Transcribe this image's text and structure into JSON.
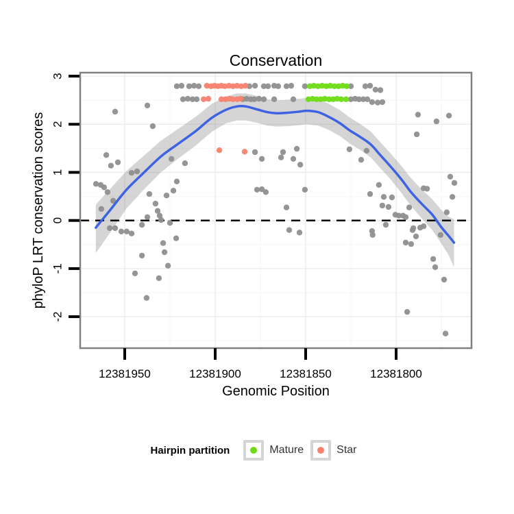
{
  "title": "Conservation",
  "axes": {
    "x_label": "Genomic Position",
    "y_label": "phyloP LRT conservation scores"
  },
  "legend": {
    "title": "Hairpin partition",
    "items": [
      {
        "label": "Mature",
        "color": "#6EDC14"
      },
      {
        "label": "Star",
        "color": "#F8826E"
      }
    ]
  },
  "colors": {
    "gray_point": "#8F8F8F",
    "mature": "#6EDC14",
    "star": "#F8826E",
    "smooth_line": "#3D63E3",
    "ribbon": "#7F7F7F",
    "panel_border": "#808080",
    "grid_major": "#ECECEC",
    "grid_minor": "#F7F7F7",
    "tick": "#000000",
    "zero_line": "#000000",
    "legend_key_border": "#D5D5D5"
  },
  "chart_data": {
    "type": "scatter",
    "title": "Conservation",
    "xlabel": "Genomic Position",
    "ylabel": "phyloP LRT conservation scores",
    "x_reversed": true,
    "xlim": [
      12381975,
      12381758
    ],
    "ylim": [
      -2.65,
      3.07
    ],
    "x_ticks": [
      12381950,
      12381900,
      12381850,
      12381800
    ],
    "y_ticks": [
      3,
      2,
      1,
      0,
      -1,
      -2
    ],
    "x_minor": [
      12381925,
      12381875,
      12381825,
      12381775
    ],
    "y_minor": [
      2.5,
      1.5,
      0.5,
      -0.5,
      -1.5,
      -2.5
    ],
    "hline": 0,
    "series": [
      {
        "name": "none",
        "color": "#8F8F8F",
        "points": [
          [
            12381921.2,
            2.79
          ],
          [
            12381918.6,
            2.8
          ],
          [
            12381914.4,
            2.79
          ],
          [
            12381911.7,
            2.8
          ],
          [
            12381909.1,
            2.79
          ],
          [
            12381881.1,
            2.79
          ],
          [
            12381878.0,
            2.8
          ],
          [
            12381873.1,
            2.79
          ],
          [
            12381870.8,
            2.79
          ],
          [
            12381867.4,
            2.8
          ],
          [
            12381865.2,
            2.79
          ],
          [
            12381860.6,
            2.79
          ],
          [
            12381858.0,
            2.8
          ],
          [
            12381850.4,
            2.79
          ],
          [
            12381825.0,
            2.79
          ],
          [
            12381817.0,
            2.79
          ],
          [
            12381814.4,
            2.8
          ],
          [
            12381811.4,
            2.72
          ],
          [
            12381808.7,
            2.71
          ],
          [
            12381917.8,
            2.52
          ],
          [
            12381915.2,
            2.53
          ],
          [
            12381912.5,
            2.52
          ],
          [
            12381910.2,
            2.52
          ],
          [
            12381884.8,
            2.52
          ],
          [
            12381882.6,
            2.53
          ],
          [
            12381880.3,
            2.52
          ],
          [
            12381878.4,
            2.52
          ],
          [
            12381875.8,
            2.53
          ],
          [
            12381873.1,
            2.52
          ],
          [
            12381867.4,
            2.52
          ],
          [
            12381856.8,
            2.52
          ],
          [
            12381825.0,
            2.52
          ],
          [
            12381822.7,
            2.53
          ],
          [
            12381820.5,
            2.52
          ],
          [
            12381818.2,
            2.52
          ],
          [
            12381815.9,
            2.52
          ],
          [
            12381813.3,
            2.46
          ],
          [
            12381810.2,
            2.45
          ],
          [
            12381807.6,
            2.46
          ],
          [
            12381955.3,
            2.26
          ],
          [
            12381937.5,
            2.39
          ],
          [
            12381934.5,
            1.96
          ],
          [
            12381960.2,
            1.36
          ],
          [
            12381957.6,
            1.14
          ],
          [
            12381953.8,
            1.21
          ],
          [
            12381946.2,
            0.99
          ],
          [
            12381943.2,
            1.02
          ],
          [
            12381965.9,
            0.76
          ],
          [
            12381963.3,
            0.74
          ],
          [
            12381961.4,
            0.69
          ],
          [
            12381959.5,
            0.59
          ],
          [
            12381924.2,
            1.28
          ],
          [
            12381916.7,
            1.19
          ],
          [
            12381878.0,
            1.42
          ],
          [
            12381874.2,
            1.28
          ],
          [
            12381921.2,
            0.81
          ],
          [
            12381936.4,
            0.55
          ],
          [
            12381933.0,
            0.35
          ],
          [
            12381926.9,
            0.52
          ],
          [
            12381923.1,
            0.62
          ],
          [
            12381956.4,
            0.41
          ],
          [
            12381962.9,
            0.24
          ],
          [
            12381931.8,
            0.2
          ],
          [
            12381930.7,
            0.1
          ],
          [
            12381937.5,
            0.07
          ],
          [
            12381940.5,
            -0.09
          ],
          [
            12381925.0,
            -0.05
          ],
          [
            12381876.9,
            0.64
          ],
          [
            12381874.2,
            0.65
          ],
          [
            12381872.0,
            0.59
          ],
          [
            12381958.3,
            -0.16
          ],
          [
            12381955.3,
            -0.16
          ],
          [
            12381951.9,
            -0.23
          ],
          [
            12381948.9,
            -0.23
          ],
          [
            12381946.2,
            -0.27
          ],
          [
            12381929.9,
            0.01
          ],
          [
            12381921.6,
            -0.37
          ],
          [
            12381928.8,
            -0.47
          ],
          [
            12381928.0,
            -0.66
          ],
          [
            12381940.5,
            -0.73
          ],
          [
            12381926.1,
            -0.94
          ],
          [
            12381944.3,
            -1.1
          ],
          [
            12381931.1,
            -1.2
          ],
          [
            12381937.9,
            -1.61
          ],
          [
            12381787.9,
            2.2
          ],
          [
            12381770.8,
            2.18
          ],
          [
            12381777.7,
            2.06
          ],
          [
            12381788.6,
            1.79
          ],
          [
            12381825.8,
            1.48
          ],
          [
            12381816.3,
            1.45
          ],
          [
            12381819.3,
            1.26
          ],
          [
            12381854.9,
            1.49
          ],
          [
            12381862.5,
            1.42
          ],
          [
            12381863.6,
            1.31
          ],
          [
            12381856.8,
            1.28
          ],
          [
            12381853.0,
            1.16
          ],
          [
            12381850.4,
            0.64
          ],
          [
            12381860.6,
            0.27
          ],
          [
            12381809.5,
            0.74
          ],
          [
            12381814.4,
            0.55
          ],
          [
            12381806.8,
            0.49
          ],
          [
            12381802.3,
            0.48
          ],
          [
            12381804.2,
            0.28
          ],
          [
            12381807.6,
            0.31
          ],
          [
            12381792.8,
            0.27
          ],
          [
            12381784.8,
            0.67
          ],
          [
            12381782.9,
            0.66
          ],
          [
            12381770.1,
            0.91
          ],
          [
            12381767.8,
            0.78
          ],
          [
            12381768.9,
            0.49
          ],
          [
            12381772.0,
            0.17
          ],
          [
            12381800.4,
            0.12
          ],
          [
            12381798.5,
            0.1
          ],
          [
            12381796.2,
            0.1
          ],
          [
            12381794.7,
            0.07
          ],
          [
            12381805.7,
            -0.09
          ],
          [
            12381790.5,
            -0.16
          ],
          [
            12381786.7,
            -0.15
          ],
          [
            12381784.8,
            -0.12
          ],
          [
            12381813.3,
            -0.22
          ],
          [
            12381859.1,
            -0.2
          ],
          [
            12381853.4,
            -0.25
          ],
          [
            12381813.0,
            -0.3
          ],
          [
            12381794.7,
            -0.46
          ],
          [
            12381791.7,
            -0.49
          ],
          [
            12381790.9,
            -0.2
          ],
          [
            12381789.0,
            -0.33
          ],
          [
            12381775.4,
            -0.3
          ],
          [
            12381779.5,
            -0.8
          ],
          [
            12381778.4,
            -0.97
          ],
          [
            12381773.5,
            -1.23
          ],
          [
            12381793.9,
            -1.9
          ],
          [
            12381772.7,
            -2.35
          ]
        ]
      },
      {
        "name": "Mature",
        "color": "#6EDC14",
        "points": [
          [
            12381847.7,
            2.79
          ],
          [
            12381845.5,
            2.8
          ],
          [
            12381843.2,
            2.79
          ],
          [
            12381840.9,
            2.8
          ],
          [
            12381838.6,
            2.79
          ],
          [
            12381836.4,
            2.8
          ],
          [
            12381834.1,
            2.79
          ],
          [
            12381831.8,
            2.79
          ],
          [
            12381829.5,
            2.8
          ],
          [
            12381827.3,
            2.79
          ],
          [
            12381848.5,
            2.52
          ],
          [
            12381846.2,
            2.53
          ],
          [
            12381843.9,
            2.52
          ],
          [
            12381841.7,
            2.52
          ],
          [
            12381839.4,
            2.53
          ],
          [
            12381837.1,
            2.52
          ],
          [
            12381834.8,
            2.52
          ],
          [
            12381832.6,
            2.53
          ],
          [
            12381830.3,
            2.52
          ],
          [
            12381827.7,
            2.52
          ]
        ]
      },
      {
        "name": "Star",
        "color": "#F8826E",
        "points": [
          [
            12381904.6,
            2.8
          ],
          [
            12381902.3,
            2.79
          ],
          [
            12381900.4,
            2.8
          ],
          [
            12381898.5,
            2.79
          ],
          [
            12381896.6,
            2.8
          ],
          [
            12381894.7,
            2.79
          ],
          [
            12381892.4,
            2.8
          ],
          [
            12381890.2,
            2.79
          ],
          [
            12381887.9,
            2.8
          ],
          [
            12381885.6,
            2.79
          ],
          [
            12381883.3,
            2.8
          ],
          [
            12381906.4,
            2.52
          ],
          [
            12381903.8,
            2.53
          ],
          [
            12381896.6,
            2.52
          ],
          [
            12381894.3,
            2.52
          ],
          [
            12381892.0,
            2.53
          ],
          [
            12381890.2,
            2.52
          ],
          [
            12381887.9,
            2.52
          ],
          [
            12381886.0,
            2.53
          ],
          [
            12381897.7,
            1.46
          ],
          [
            12381883.7,
            1.43
          ]
        ]
      }
    ],
    "smooth": {
      "color": "#3D63E3",
      "line": [
        [
          12381966,
          -0.15
        ],
        [
          12381958,
          0.22
        ],
        [
          12381949,
          0.64
        ],
        [
          12381939,
          1.01
        ],
        [
          12381930,
          1.33
        ],
        [
          12381921,
          1.58
        ],
        [
          12381911,
          1.85
        ],
        [
          12381902,
          2.13
        ],
        [
          12381894,
          2.3
        ],
        [
          12381888,
          2.37
        ],
        [
          12381883,
          2.37
        ],
        [
          12381877,
          2.31
        ],
        [
          12381871,
          2.25
        ],
        [
          12381866,
          2.23
        ],
        [
          12381860,
          2.24
        ],
        [
          12381854,
          2.26
        ],
        [
          12381849,
          2.28
        ],
        [
          12381843,
          2.25
        ],
        [
          12381837,
          2.15
        ],
        [
          12381831,
          2.02
        ],
        [
          12381826,
          1.88
        ],
        [
          12381820,
          1.74
        ],
        [
          12381814,
          1.58
        ],
        [
          12381809,
          1.37
        ],
        [
          12381803,
          1.12
        ],
        [
          12381797,
          0.85
        ],
        [
          12381792,
          0.6
        ],
        [
          12381786,
          0.35
        ],
        [
          12381780,
          0.12
        ],
        [
          12381775,
          -0.14
        ],
        [
          12381771,
          -0.32
        ],
        [
          12381768,
          -0.46
        ]
      ],
      "ribbon": [
        [
          12381966,
          -0.68,
          0.33
        ],
        [
          12381958,
          -0.25,
          0.66
        ],
        [
          12381949,
          0.25,
          1.03
        ],
        [
          12381939,
          0.66,
          1.36
        ],
        [
          12381930,
          1.0,
          1.66
        ],
        [
          12381921,
          1.27,
          1.89
        ],
        [
          12381911,
          1.55,
          2.15
        ],
        [
          12381902,
          1.84,
          2.42
        ],
        [
          12381894,
          2.02,
          2.58
        ],
        [
          12381888,
          2.08,
          2.64
        ],
        [
          12381883,
          2.08,
          2.64
        ],
        [
          12381877,
          2.03,
          2.59
        ],
        [
          12381871,
          1.97,
          2.52
        ],
        [
          12381866,
          1.95,
          2.5
        ],
        [
          12381860,
          1.96,
          2.51
        ],
        [
          12381854,
          1.98,
          2.53
        ],
        [
          12381849,
          2.0,
          2.55
        ],
        [
          12381843,
          1.97,
          2.52
        ],
        [
          12381837,
          1.88,
          2.42
        ],
        [
          12381831,
          1.75,
          2.29
        ],
        [
          12381826,
          1.61,
          2.15
        ],
        [
          12381820,
          1.47,
          2.01
        ],
        [
          12381814,
          1.31,
          1.85
        ],
        [
          12381809,
          1.1,
          1.64
        ],
        [
          12381803,
          0.85,
          1.39
        ],
        [
          12381797,
          0.57,
          1.13
        ],
        [
          12381792,
          0.31,
          0.89
        ],
        [
          12381786,
          0.05,
          0.65
        ],
        [
          12381780,
          -0.2,
          0.44
        ],
        [
          12381775,
          -0.48,
          0.22
        ],
        [
          12381771,
          -0.72,
          0.08
        ],
        [
          12381768,
          -0.97,
          0.02
        ]
      ]
    }
  }
}
